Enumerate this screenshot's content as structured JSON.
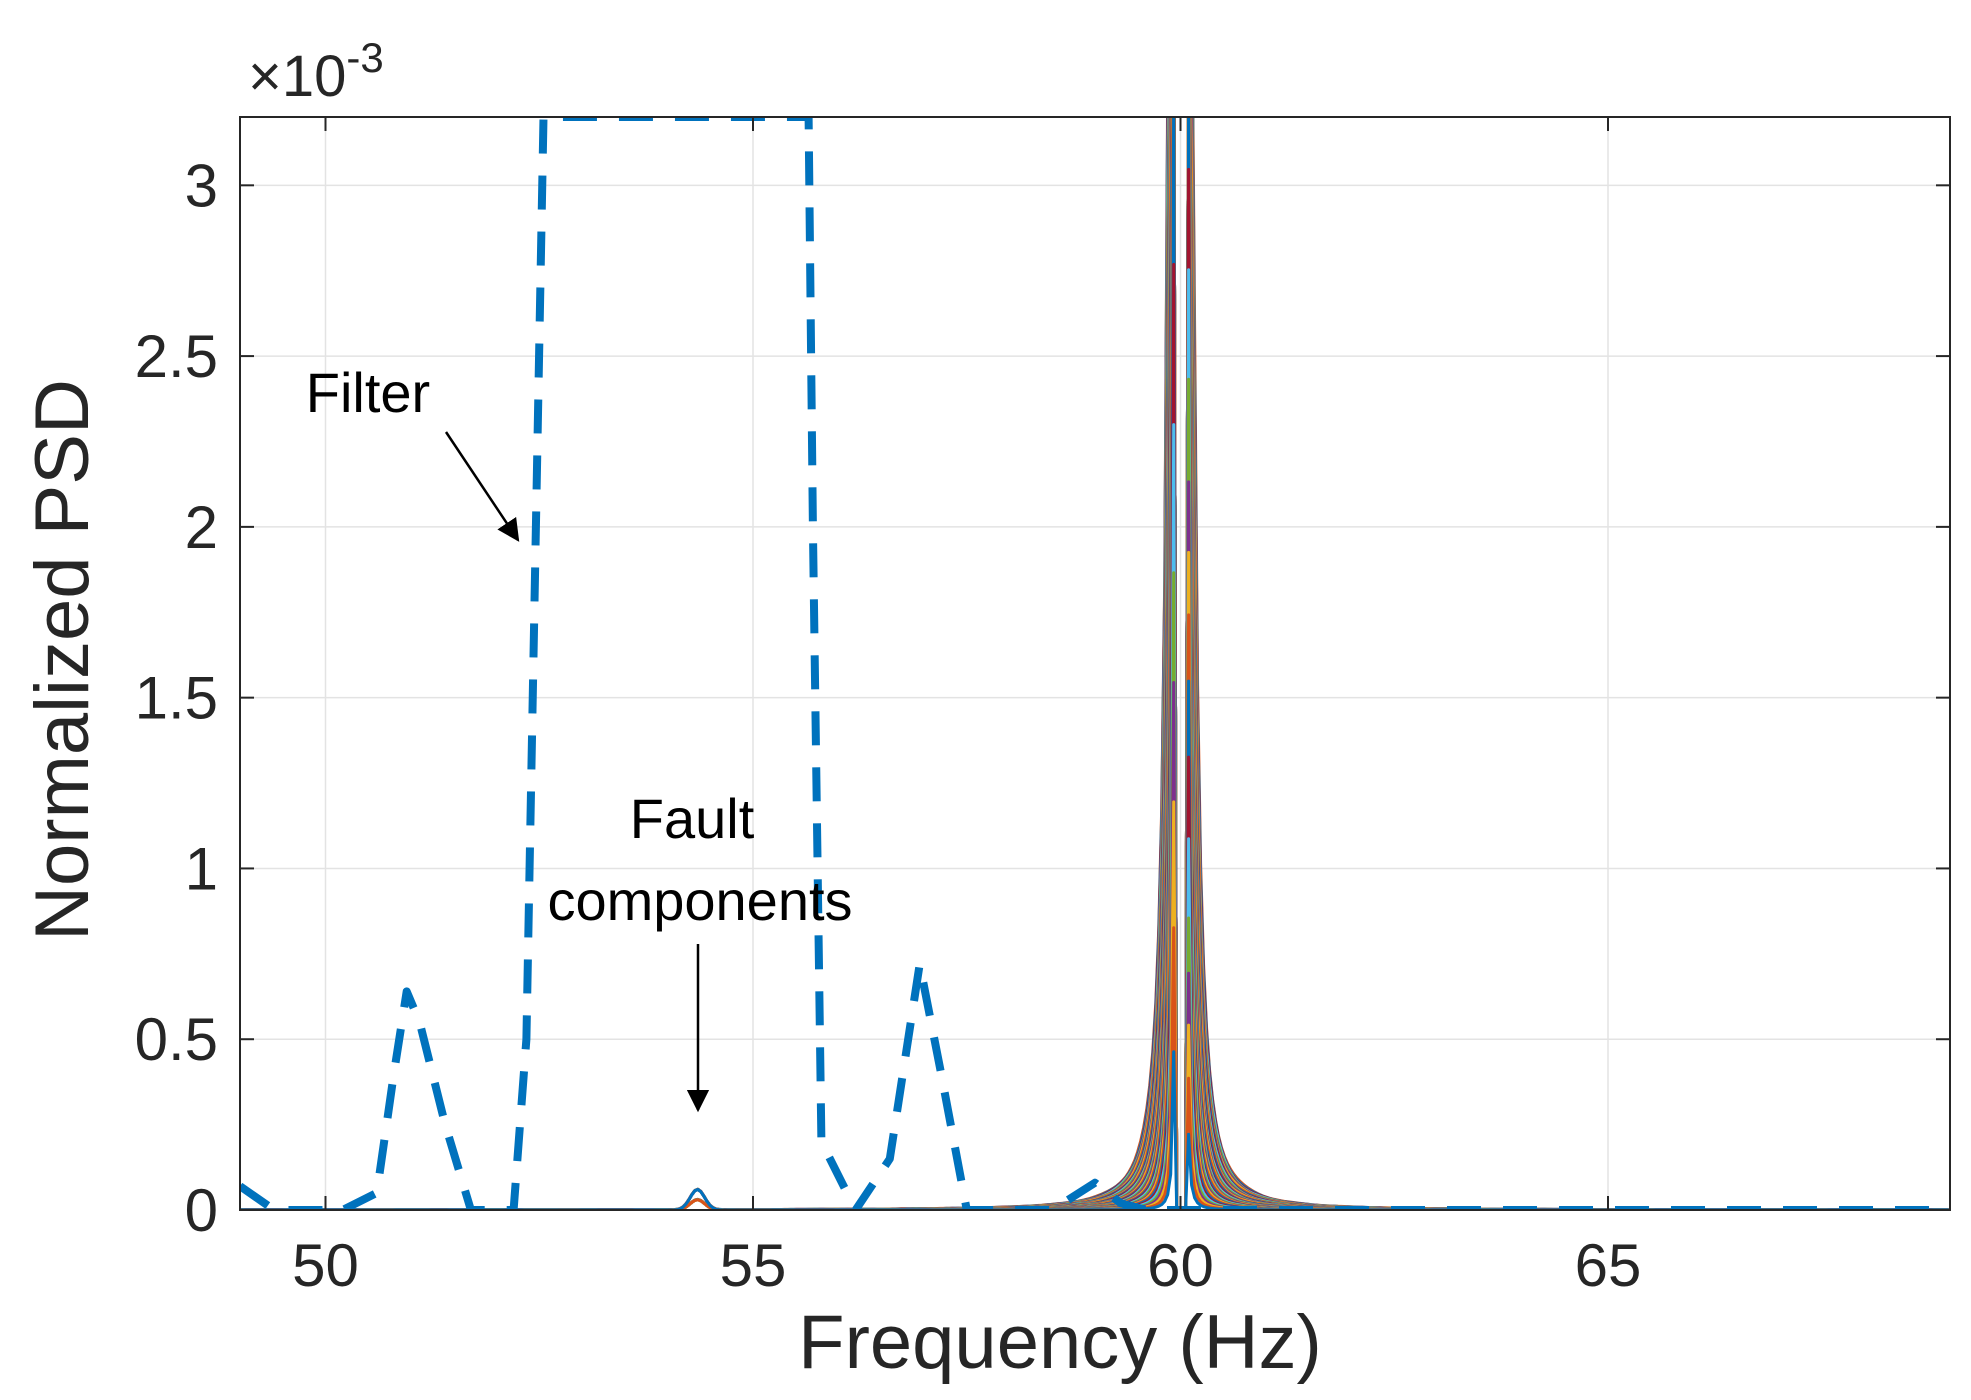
{
  "chart_data": {
    "type": "line",
    "title": "",
    "xlabel": "Frequency (Hz)",
    "ylabel": "Normalized PSD",
    "y_exponent": {
      "base": "10",
      "power": "-3",
      "times": "×"
    },
    "xlim": [
      49,
      69
    ],
    "ylim": [
      0,
      3.2
    ],
    "x_ticks": [
      50,
      55,
      60,
      65
    ],
    "x_tick_labels": [
      "50",
      "55",
      "60",
      "65"
    ],
    "y_ticks": [
      0,
      0.5,
      1,
      1.5,
      2,
      2.5,
      3
    ],
    "y_tick_labels": [
      "0",
      "0.5",
      "1",
      "1.5",
      "2",
      "2.5",
      "3"
    ],
    "grid": true,
    "colors": [
      "#0072BD",
      "#D95319",
      "#EDB120",
      "#7E2F8E",
      "#77AC30",
      "#4DBEEE",
      "#A2142F"
    ],
    "filter_color": "#0072BD",
    "psd_family": {
      "description_count": 44,
      "center_hz": 60,
      "peak_clip": 3.2,
      "half_widths_hz": [
        0.04,
        0.07,
        0.1,
        0.13,
        0.16,
        0.2,
        0.24,
        0.28,
        0.32,
        0.36,
        0.4,
        0.45,
        0.5,
        0.55,
        0.6,
        0.65,
        0.7,
        0.76,
        0.82,
        0.88,
        0.94,
        1.0,
        1.07,
        1.14,
        1.21,
        1.28,
        1.35,
        1.43,
        1.51,
        1.59,
        1.67,
        1.75,
        1.84,
        1.93,
        2.02,
        2.11,
        2.2,
        2.3,
        2.4,
        2.5,
        2.6,
        2.7,
        2.8,
        2.9
      ],
      "gap_hz": 0.12,
      "scale": 0.012
    },
    "series": [
      {
        "name": "Filter",
        "style": "dashed",
        "x": [
          49,
          49.4,
          49.8,
          50.2,
          50.6,
          50.8,
          50.95,
          51.1,
          51.4,
          51.7,
          52.0,
          52.2,
          52.35,
          52.55,
          52.7,
          52.9,
          53.5,
          54.0,
          54.3,
          54.6,
          55.0,
          55.5,
          55.6,
          55.65,
          55.7,
          55.8,
          56.2,
          56.6,
          56.95,
          57.2,
          57.5,
          58.0,
          58.5,
          59.0,
          59.3,
          59.6,
          60.0,
          61.0,
          62.0,
          63.0,
          64.0,
          65.0,
          66.0,
          67.0,
          68.0,
          69.0
        ],
        "y": [
          0.07,
          0.0,
          0.0,
          0.0,
          0.05,
          0.4,
          0.64,
          0.55,
          0.25,
          0.0,
          0.0,
          0.0,
          0.5,
          3.2,
          3.2,
          3.2,
          3.2,
          3.2,
          3.2,
          3.2,
          3.2,
          3.2,
          3.2,
          3.2,
          2.0,
          0.2,
          0.0,
          0.15,
          0.72,
          0.4,
          0.0,
          0.0,
          0.0,
          0.08,
          0.02,
          0.0,
          0.0,
          0.0,
          0.0,
          0.0,
          0.0,
          0.0,
          0.0,
          0.0,
          0.0,
          0.0
        ]
      }
    ],
    "annotations": [
      {
        "text": "Filter",
        "arrow_to": {
          "x": 52.3,
          "y": 1.93
        }
      },
      {
        "text_lines": [
          "Fault",
          "components"
        ],
        "arrow_to": {
          "x": 54.35,
          "y": 0.28
        }
      }
    ]
  }
}
